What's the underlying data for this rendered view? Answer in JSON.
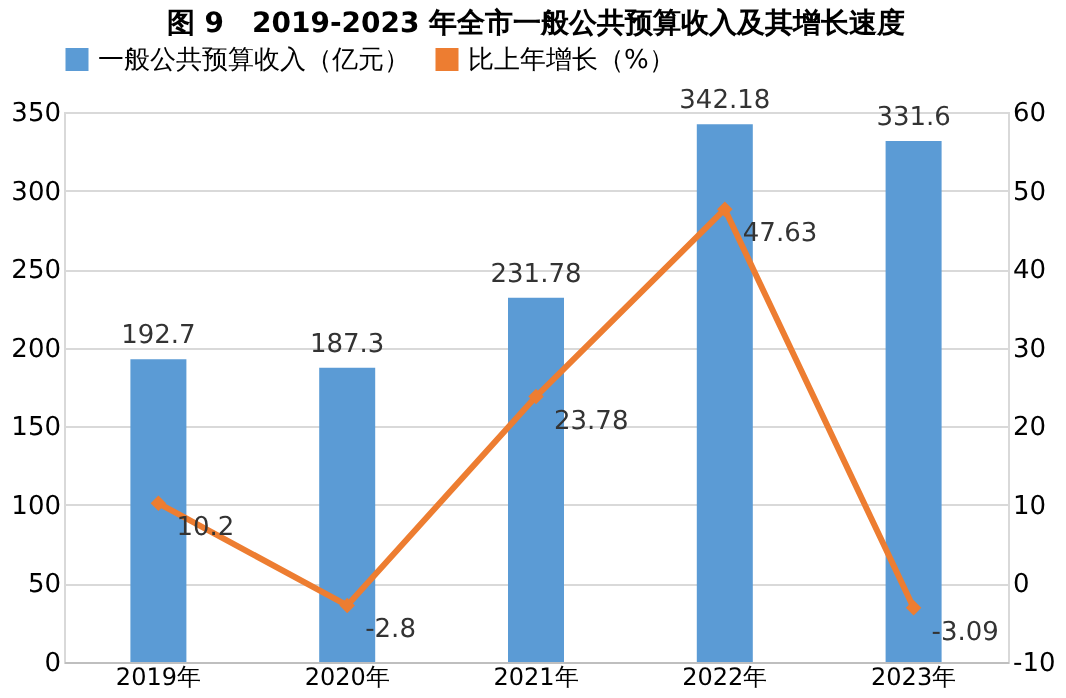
{
  "chart_data": {
    "type": "bar",
    "title": "图 9　2019-2023 年全市一般公共预算收入及其增长速度",
    "categories": [
      "2019年",
      "2020年",
      "2021年",
      "2022年",
      "2023年"
    ],
    "series": [
      {
        "name": "一般公共预算收入（亿元）",
        "color": "#5b9bd5",
        "values": [
          192.7,
          187.3,
          231.78,
          342.18,
          331.6
        ]
      },
      {
        "name": "比上年增长（%）",
        "type": "line",
        "axis": "y2",
        "color": "#ed7d31",
        "marker": "diamond",
        "values": [
          10.2,
          -2.8,
          23.78,
          47.63,
          -3.09
        ]
      }
    ],
    "ylim": [
      0,
      350
    ],
    "yticks": [
      0,
      50,
      100,
      150,
      200,
      250,
      300,
      350
    ],
    "y2lim": [
      -10,
      60
    ],
    "y2ticks": [
      -10,
      0,
      10,
      20,
      30,
      40,
      50,
      60
    ],
    "grid": "y",
    "legend": "top",
    "data_labels": true
  }
}
